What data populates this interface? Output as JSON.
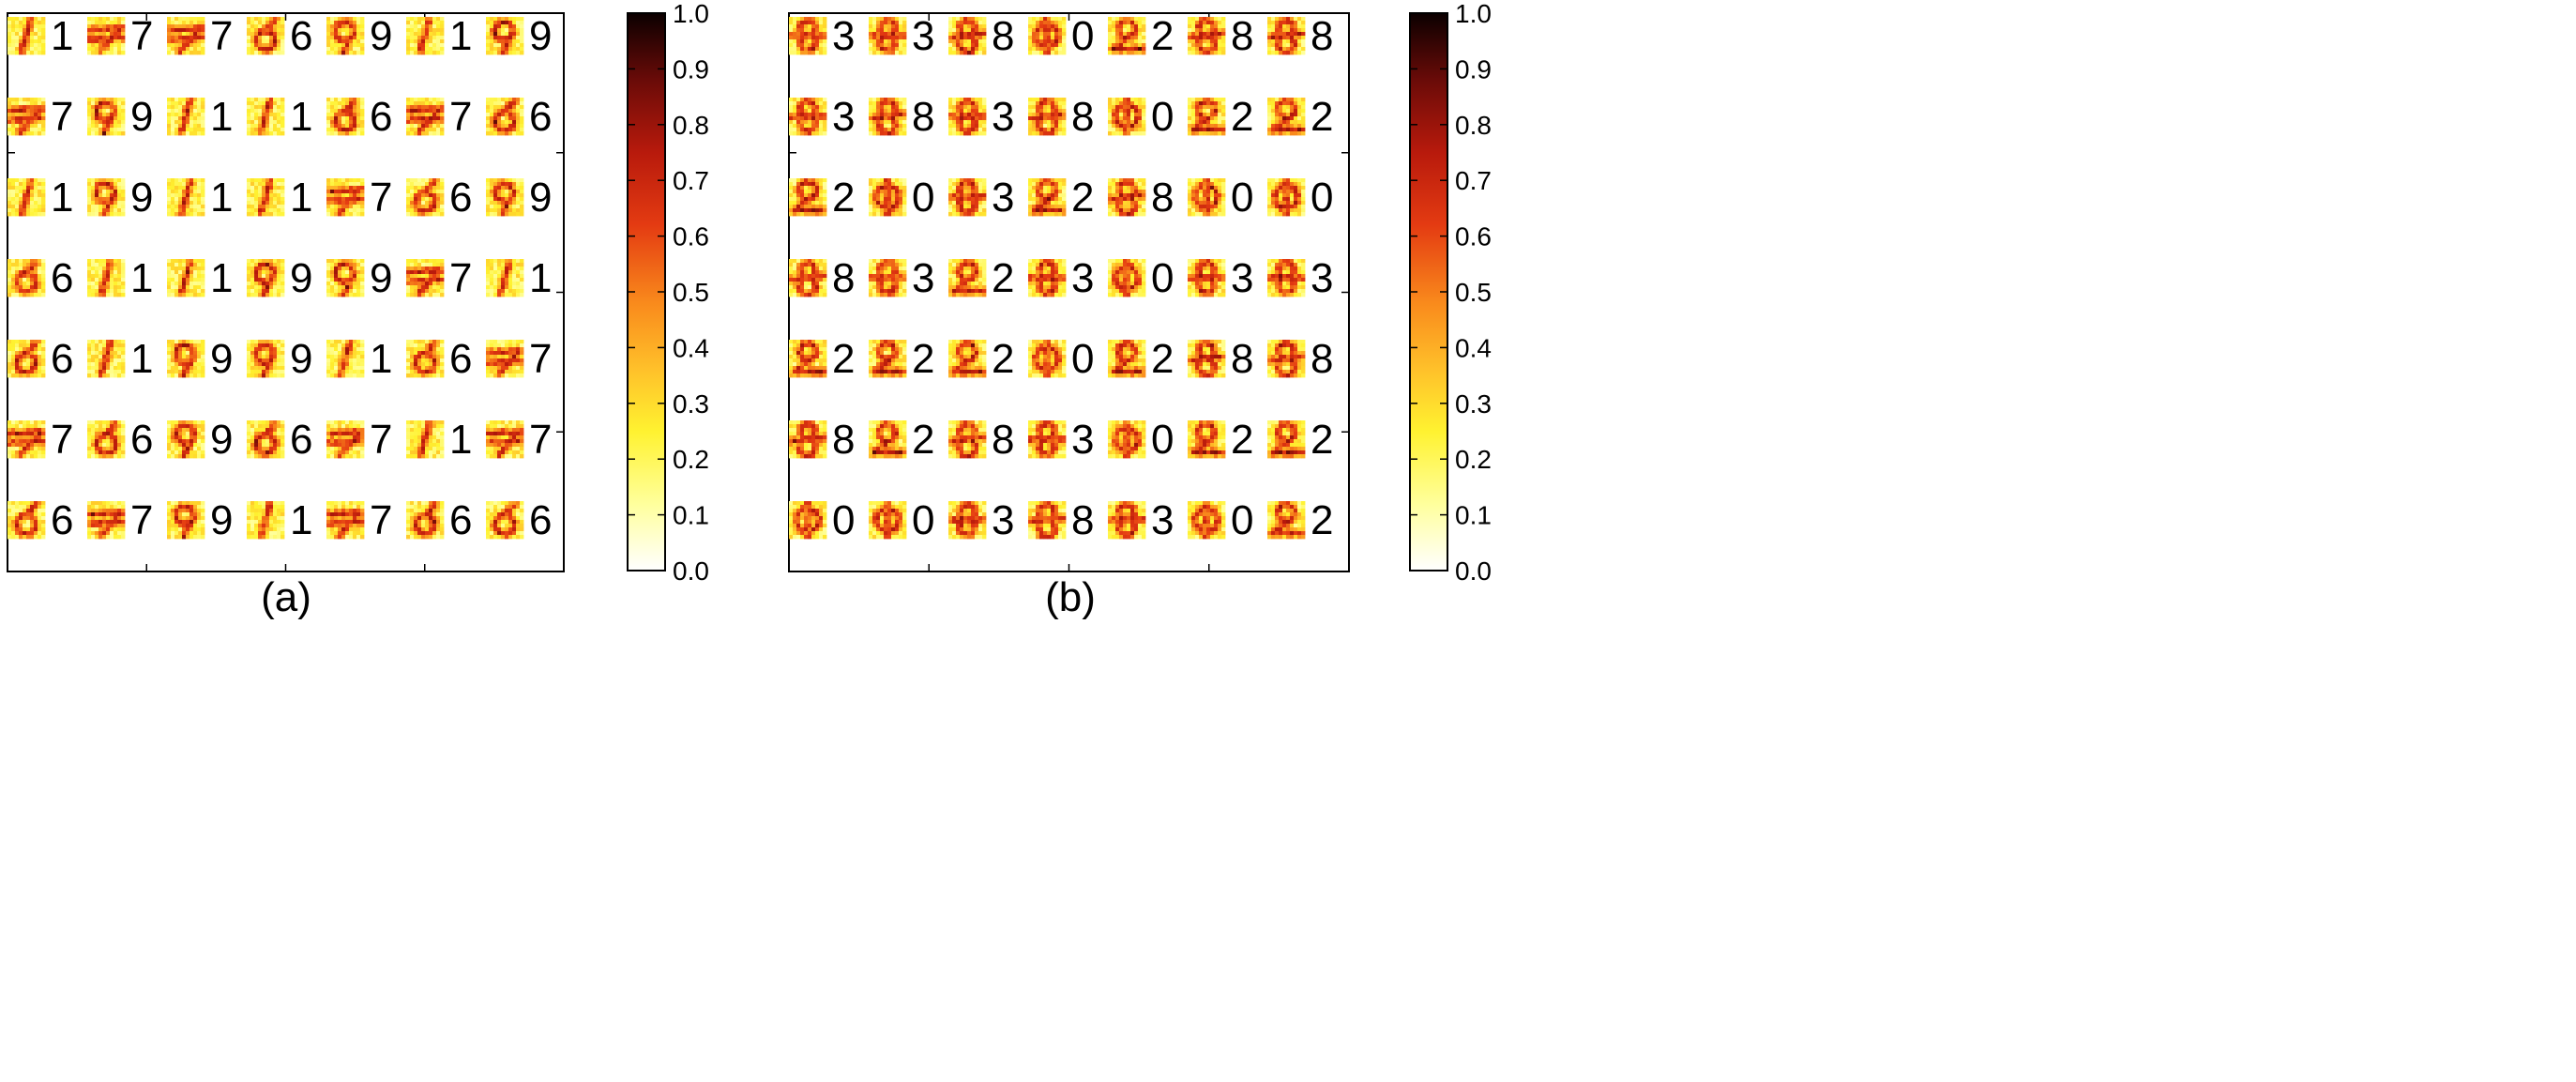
{
  "chart_data": [
    {
      "type": "heatmap",
      "caption": "(a)",
      "rows": 7,
      "cols": 7,
      "labels": [
        [
          "1",
          "7",
          "7",
          "6",
          "9",
          "1",
          "9"
        ],
        [
          "7",
          "9",
          "1",
          "1",
          "6",
          "7",
          "6"
        ],
        [
          "1",
          "9",
          "1",
          "1",
          "7",
          "6",
          "9"
        ],
        [
          "6",
          "1",
          "1",
          "9",
          "9",
          "7",
          "1"
        ],
        [
          "6",
          "1",
          "9",
          "9",
          "1",
          "6",
          "7"
        ],
        [
          "7",
          "6",
          "9",
          "6",
          "7",
          "1",
          "7"
        ],
        [
          "6",
          "7",
          "9",
          "1",
          "7",
          "6",
          "6"
        ]
      ],
      "colorbar": {
        "colormap": "hot_r",
        "range": [
          0.0,
          1.0
        ],
        "ticks": [
          "0.0",
          "0.1",
          "0.2",
          "0.3",
          "0.4",
          "0.5",
          "0.6",
          "0.7",
          "0.8",
          "0.9",
          "1.0"
        ]
      },
      "grid": false
    },
    {
      "type": "heatmap",
      "caption": "(b)",
      "rows": 7,
      "cols": 7,
      "labels": [
        [
          "3",
          "3",
          "8",
          "0",
          "2",
          "8",
          "8"
        ],
        [
          "3",
          "8",
          "3",
          "8",
          "0",
          "2",
          "2"
        ],
        [
          "2",
          "0",
          "3",
          "2",
          "8",
          "0",
          "0"
        ],
        [
          "8",
          "3",
          "2",
          "3",
          "0",
          "3",
          "3"
        ],
        [
          "2",
          "2",
          "2",
          "0",
          "2",
          "8",
          "8"
        ],
        [
          "8",
          "2",
          "8",
          "3",
          "0",
          "2",
          "2"
        ],
        [
          "0",
          "0",
          "3",
          "8",
          "3",
          "0",
          "2"
        ]
      ],
      "colorbar": {
        "colormap": "hot_r",
        "range": [
          0.0,
          1.0
        ],
        "ticks": [
          "0.0",
          "0.1",
          "0.2",
          "0.3",
          "0.4",
          "0.5",
          "0.6",
          "0.7",
          "0.8",
          "0.9",
          "1.0"
        ]
      },
      "grid": false
    }
  ]
}
